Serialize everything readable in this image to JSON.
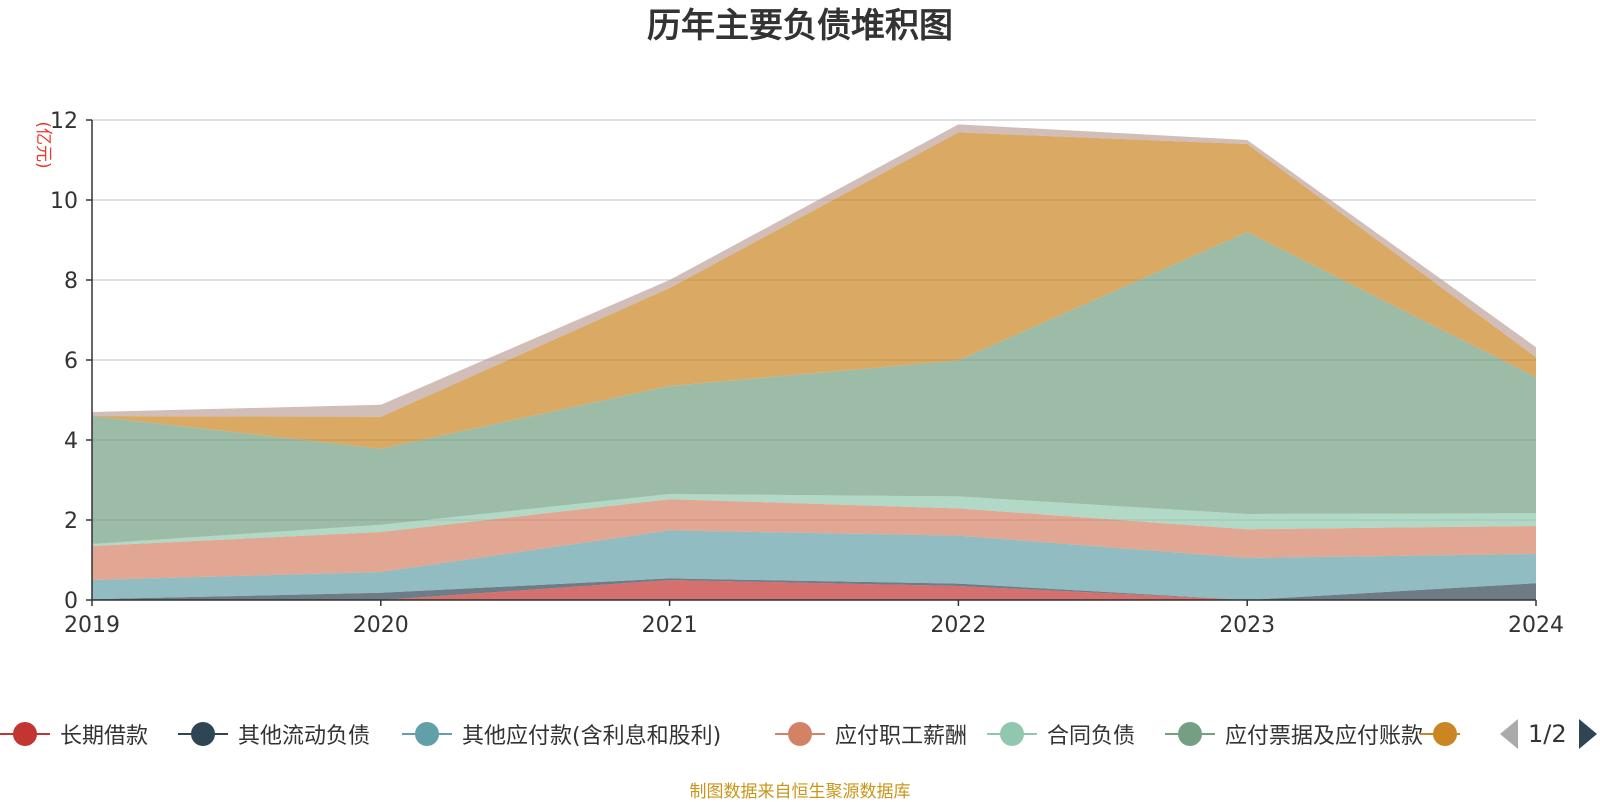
{
  "chart_data": {
    "type": "area",
    "stacked": true,
    "title": "历年主要负债堆积图",
    "ylabel": "(亿元)",
    "xlabel": "",
    "x": [
      "2019",
      "2020",
      "2021",
      "2022",
      "2023",
      "2024"
    ],
    "ylim": [
      0,
      12
    ],
    "yticks": [
      0,
      2,
      4,
      6,
      8,
      10,
      12
    ],
    "grid": true,
    "series": [
      {
        "name": "长期借款",
        "color": "#c23531",
        "values": [
          0,
          0,
          0.5,
          0.35,
          0,
          0
        ]
      },
      {
        "name": "其他流动负债",
        "color": "#2f4554",
        "values": [
          0.02,
          0.18,
          0.04,
          0.06,
          0,
          0.42
        ]
      },
      {
        "name": "其他应付款(含利息和股利)",
        "color": "#61a0a8",
        "values": [
          0.48,
          0.52,
          1.2,
          1.2,
          1.05,
          0.73
        ]
      },
      {
        "name": "应付职工薪酬",
        "color": "#d48265",
        "values": [
          0.85,
          1.0,
          0.78,
          0.68,
          0.72,
          0.7
        ]
      },
      {
        "name": "合同负债",
        "color": "#91c7ae",
        "values": [
          0.05,
          0.18,
          0.13,
          0.3,
          0.38,
          0.32
        ]
      },
      {
        "name": "应付票据及应付账款",
        "color": "#749f83",
        "values": [
          3.2,
          1.9,
          2.7,
          3.4,
          7.05,
          3.4
        ]
      },
      {
        "name": "",
        "color": "#ca8622",
        "values": [
          0,
          0.8,
          2.45,
          5.7,
          2.2,
          0.5
        ]
      },
      {
        "name": "",
        "color": "#bda29a",
        "values": [
          0.1,
          0.3,
          0.2,
          0.2,
          0.1,
          0.25
        ]
      }
    ]
  },
  "legend": {
    "items": [
      {
        "label": "长期借款",
        "color": "#c23531"
      },
      {
        "label": "其他流动负债",
        "color": "#2f4554"
      },
      {
        "label": "其他应付款(含利息和股利)",
        "color": "#61a0a8"
      },
      {
        "label": "应付职工薪酬",
        "color": "#d48265"
      },
      {
        "label": "合同负债",
        "color": "#91c7ae"
      },
      {
        "label": "应付票据及应付账款",
        "color": "#749f83"
      },
      {
        "label": "",
        "color": "#ca8622"
      }
    ],
    "page_indicator": "1/2"
  },
  "footer": "制图数据来自恒生聚源数据库"
}
